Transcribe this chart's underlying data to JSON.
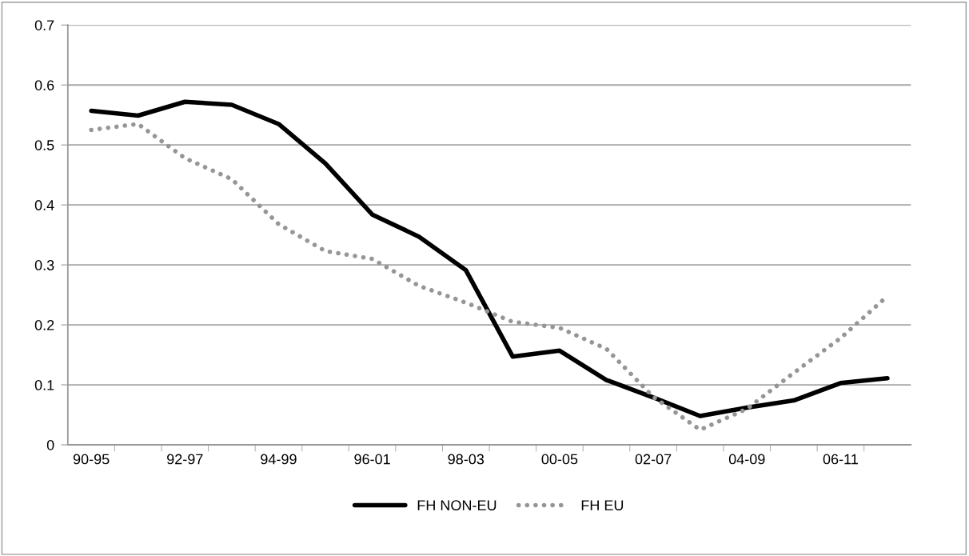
{
  "chart_data": {
    "type": "line",
    "categories": [
      "90-95",
      null,
      "92-97",
      null,
      "94-99",
      null,
      "96-01",
      null,
      "98-03",
      null,
      "00-05",
      null,
      "02-07",
      null,
      "04-09",
      null,
      "06-11",
      null
    ],
    "series": [
      {
        "name": "FH NON-EU",
        "color": "#000000",
        "line_style": "solid",
        "values": [
          0.557,
          0.549,
          0.572,
          0.567,
          0.535,
          0.469,
          0.384,
          0.347,
          0.291,
          0.147,
          0.157,
          0.108,
          0.079,
          0.048,
          0.062,
          0.074,
          0.103,
          0.111
        ]
      },
      {
        "name": "FH EU",
        "color": "#969696",
        "line_style": "dotted",
        "values": [
          0.525,
          0.535,
          0.478,
          0.443,
          0.368,
          0.323,
          0.31,
          0.265,
          0.237,
          0.205,
          0.195,
          0.16,
          0.08,
          0.025,
          0.06,
          0.12,
          0.178,
          0.248
        ]
      }
    ],
    "ylim": [
      0,
      0.7
    ],
    "yticks": [
      0,
      0.1,
      0.2,
      0.3,
      0.4,
      0.5,
      0.6,
      0.7
    ],
    "grid": "y",
    "legend": "bottom",
    "marker": "none"
  }
}
